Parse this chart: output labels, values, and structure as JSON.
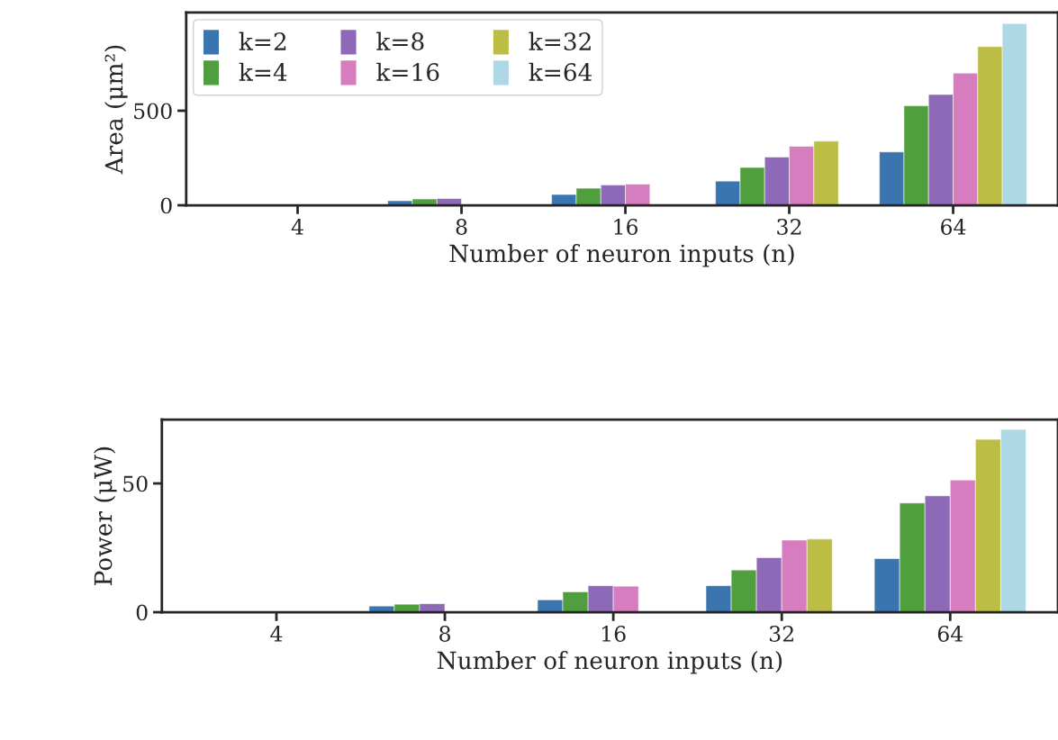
{
  "chart_data": [
    {
      "type": "bar",
      "categories": [
        "4",
        "8",
        "16",
        "32",
        "64"
      ],
      "xlabel": "Number of neuron inputs (n)",
      "ylabel": "Area (μm²)",
      "ylim": [
        0,
        1019
      ],
      "yticks": [
        0,
        500
      ],
      "grid": false,
      "legend": "top left",
      "series": [
        {
          "name": "k=2",
          "color": "#3b75af",
          "values": [
            3,
            24,
            57,
            128,
            282
          ]
        },
        {
          "name": "k=4",
          "color": "#519e3e",
          "values": [
            4,
            33,
            90,
            200,
            526
          ]
        },
        {
          "name": "k=8",
          "color": "#8d69b8",
          "values": [
            null,
            36,
            107,
            255,
            586
          ]
        },
        {
          "name": "k=16",
          "color": "#d57dbe",
          "values": [
            null,
            null,
            112,
            312,
            699
          ]
        },
        {
          "name": "k=32",
          "color": "#bcbd45",
          "values": [
            null,
            null,
            null,
            339,
            839
          ]
        },
        {
          "name": "k=64",
          "color": "#aed8e6",
          "values": [
            null,
            null,
            null,
            null,
            961
          ]
        }
      ]
    },
    {
      "type": "bar",
      "categories": [
        "4",
        "8",
        "16",
        "32",
        "64"
      ],
      "xlabel": "Number of neuron inputs (n)",
      "ylabel": "Power (μW)",
      "ylim": [
        0,
        74.8
      ],
      "yticks": [
        0,
        50
      ],
      "grid": false,
      "legend": false,
      "series": [
        {
          "color": "#3b75af",
          "values": [
            0.3,
            2.4,
            4.8,
            10.3,
            20.8
          ]
        },
        {
          "color": "#519e3e",
          "values": [
            0.3,
            3.1,
            7.9,
            16.4,
            42.4
          ]
        },
        {
          "color": "#8d69b8",
          "values": [
            null,
            3.3,
            10.3,
            21.2,
            45.2
          ]
        },
        {
          "color": "#d57dbe",
          "values": [
            null,
            null,
            10.1,
            28.0,
            51.3
          ]
        },
        {
          "color": "#bcbd45",
          "values": [
            null,
            null,
            null,
            28.4,
            67.1
          ]
        },
        {
          "color": "#aed8e6",
          "values": [
            null,
            null,
            null,
            null,
            71.0
          ]
        }
      ]
    }
  ]
}
